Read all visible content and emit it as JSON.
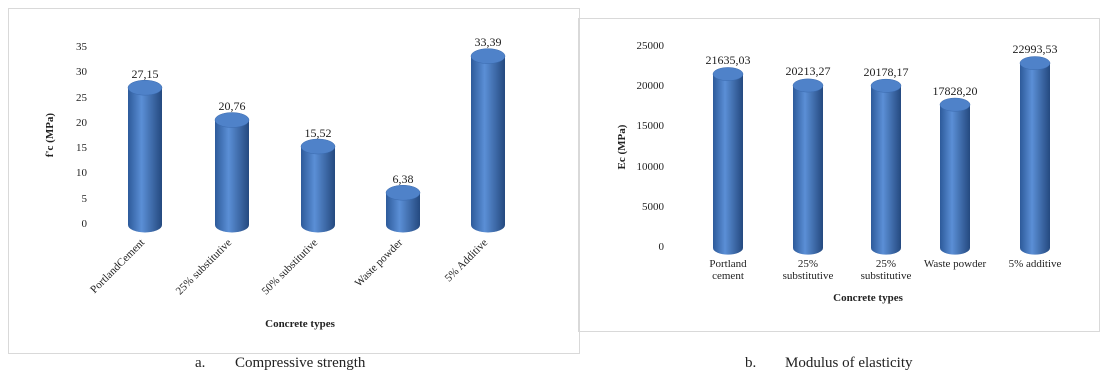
{
  "chart_data": [
    {
      "type": "bar",
      "ylabel": "f'c (MPa)",
      "xlabel": "Concrete types",
      "caption_label": "a.",
      "caption": "Compressive strength",
      "categories": [
        "PortlandCement",
        "25% substitutive",
        "50% substitutive",
        "Waste powder",
        "5% Additive"
      ],
      "values": [
        27.15,
        20.76,
        15.52,
        6.38,
        33.39
      ],
      "value_labels": [
        "27,15",
        "20,76",
        "15,52",
        "6,38",
        "33,39"
      ],
      "color": "#4472c4",
      "ylim": [
        0,
        35
      ],
      "yticks": [
        0,
        5,
        10,
        15,
        20,
        25,
        30,
        35
      ]
    },
    {
      "type": "bar",
      "ylabel": "Ec (MPa)",
      "xlabel": "Concrete types",
      "caption_label": "b.",
      "caption": "Modulus of elasticity",
      "categories": [
        "Portland cement",
        "25% substitutive",
        "25% substitutive",
        "Waste powder",
        "5% additive"
      ],
      "values": [
        21635.03,
        20213.27,
        20178.17,
        17828.2,
        22993.53
      ],
      "value_labels": [
        "21635,03",
        "20213,27",
        "20178,17",
        "17828,20",
        "22993,53"
      ],
      "color": "#4472c4",
      "ylim": [
        0,
        25000
      ],
      "yticks": [
        0,
        5000,
        10000,
        15000,
        20000,
        25000
      ]
    }
  ]
}
